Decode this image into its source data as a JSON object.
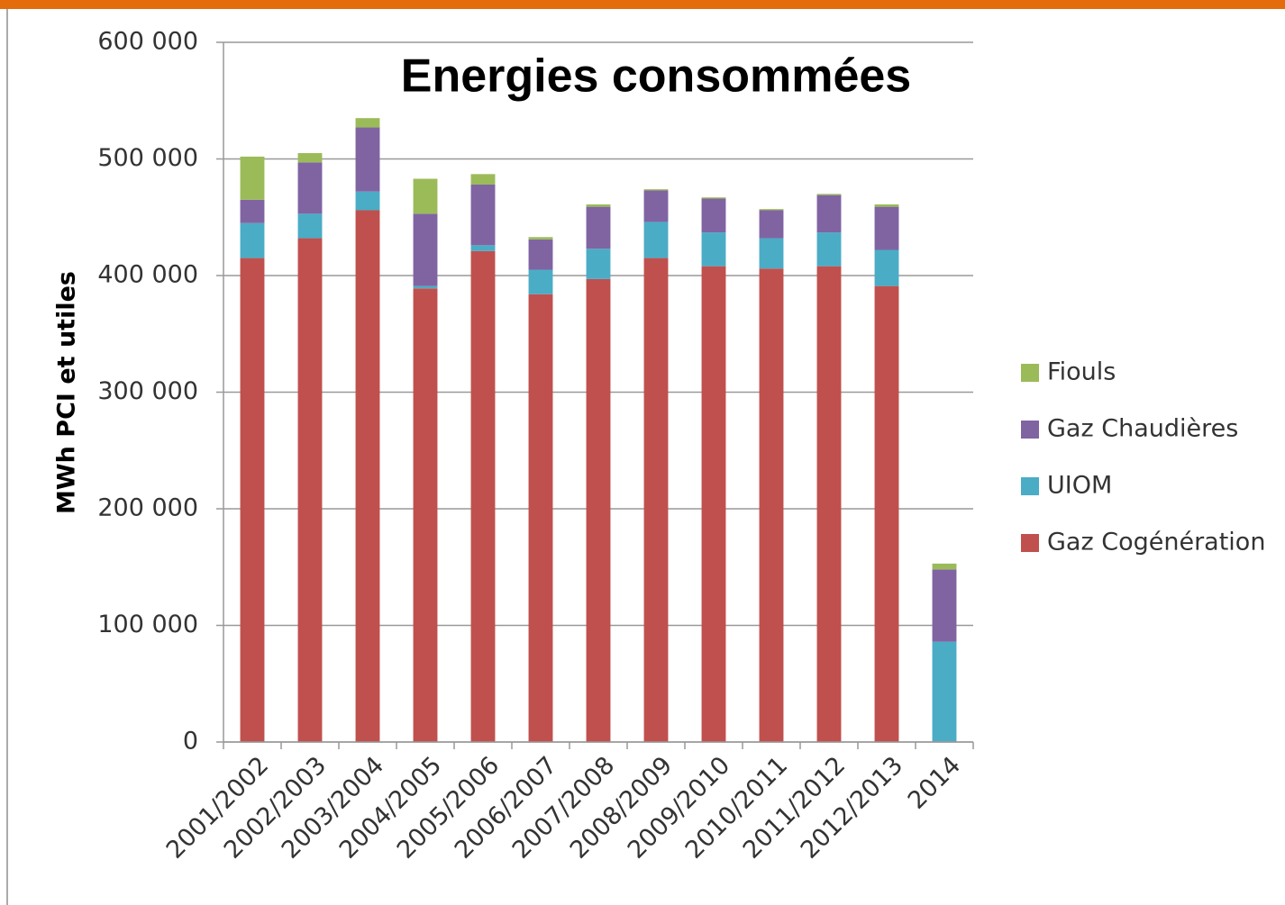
{
  "chart_data": {
    "type": "stacked_bar",
    "title": "Energies consommées",
    "y_label": "MWh PCI et utiles",
    "categories": [
      "2001/2002",
      "2002/2003",
      "2003/2004",
      "2004/2005",
      "2005/2006",
      "2006/2007",
      "2007/2008",
      "2008/2009",
      "2009/2010",
      "2010/2011",
      "2011/2012",
      "2012/2013",
      "2014"
    ],
    "series": [
      {
        "name": "Gaz Cogénération",
        "color": "#c0504d",
        "values": [
          415000,
          432000,
          456000,
          389000,
          421000,
          384000,
          397000,
          415000,
          408000,
          406000,
          408000,
          391000,
          0
        ]
      },
      {
        "name": "UIOM",
        "color": "#4bacc6",
        "values": [
          30000,
          21000,
          16000,
          2000,
          5000,
          21000,
          26000,
          31000,
          29000,
          26000,
          29000,
          31000,
          86000
        ]
      },
      {
        "name": "Gaz Chaudières",
        "color": "#8064a2",
        "values": [
          20000,
          44000,
          55000,
          62000,
          52000,
          26000,
          36000,
          27000,
          29000,
          24000,
          32000,
          37000,
          62000
        ]
      },
      {
        "name": "Fiouls",
        "color": "#9bbb59",
        "values": [
          37000,
          8000,
          8000,
          30000,
          9000,
          2000,
          2000,
          1000,
          1000,
          1000,
          1000,
          2000,
          5000
        ]
      }
    ],
    "ylim": [
      0,
      600000
    ],
    "yticks": [
      0,
      {
        "value": 100000,
        "label": "100 000"
      },
      {
        "value": 200000,
        "label": "200 000"
      },
      {
        "value": 300000,
        "label": "300 000"
      },
      {
        "value": 400000,
        "label": "400 000"
      },
      {
        "value": 500000,
        "label": "500 000"
      },
      {
        "value": 600000,
        "label": "600 000"
      }
    ],
    "grid": true,
    "legend": "right"
  }
}
